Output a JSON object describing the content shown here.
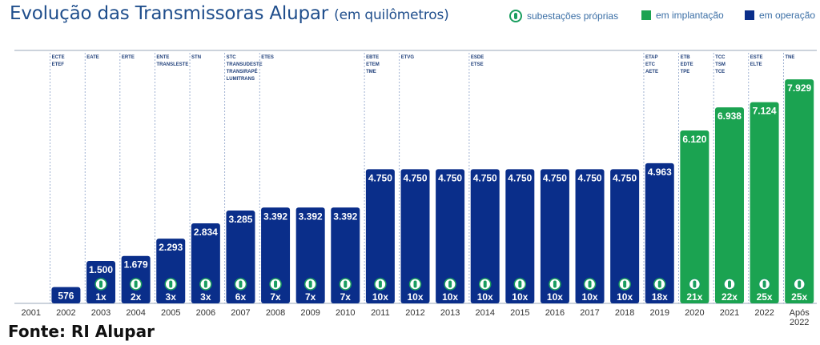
{
  "title": {
    "main": "Evolução das Transmissoras Alupar",
    "sub": "(em quilômetros)"
  },
  "legend": {
    "substations": "subestações próprias",
    "implantation": "em implantação",
    "operation": "em operação"
  },
  "source": "Fonte: RI Alupar",
  "colors": {
    "operation": "#0a2e8a",
    "implantation": "#1ba351",
    "title": "#1f4e8c",
    "axis": "#6b7280",
    "substation_icon": "#1a9e5f"
  },
  "chart_data": {
    "type": "bar",
    "categories": [
      "2001",
      "2002",
      "2003",
      "2004",
      "2005",
      "2006",
      "2007",
      "2008",
      "2009",
      "2010",
      "2011",
      "2012",
      "2013",
      "2014",
      "2015",
      "2016",
      "2017",
      "2018",
      "2019",
      "2020",
      "2021",
      "2022",
      "Após 2022"
    ],
    "values": [
      0,
      576,
      1500,
      1679,
      2293,
      2834,
      3285,
      3392,
      3392,
      3392,
      4750,
      4750,
      4750,
      4750,
      4750,
      4750,
      4750,
      4750,
      4963,
      6120,
      6938,
      7124,
      7929
    ],
    "value_labels": [
      "",
      "576",
      "1.500",
      "1.679",
      "2.293",
      "2.834",
      "3.285",
      "3.392",
      "3.392",
      "3.392",
      "4.750",
      "4.750",
      "4.750",
      "4.750",
      "4.750",
      "4.750",
      "4.750",
      "4.750",
      "4.963",
      "6.120",
      "6.938",
      "7.124",
      "7.929"
    ],
    "status": [
      "operation",
      "operation",
      "operation",
      "operation",
      "operation",
      "operation",
      "operation",
      "operation",
      "operation",
      "operation",
      "operation",
      "operation",
      "operation",
      "operation",
      "operation",
      "operation",
      "operation",
      "operation",
      "operation",
      "implantation",
      "implantation",
      "implantation",
      "implantation"
    ],
    "substations": [
      "",
      "",
      "1x",
      "2x",
      "3x",
      "3x",
      "6x",
      "7x",
      "7x",
      "7x",
      "10x",
      "10x",
      "10x",
      "10x",
      "10x",
      "10x",
      "10x",
      "10x",
      "18x",
      "21x",
      "22x",
      "25x",
      "25x"
    ],
    "annotations": [
      [],
      [
        "ECTE",
        "ETEF"
      ],
      [
        "EATE"
      ],
      [
        "ERTE"
      ],
      [
        "ENTE",
        "TRANSLESTE"
      ],
      [
        "STN"
      ],
      [
        "STC",
        "TRANSUDESTE",
        "TRANSIRAPÉ",
        "LUMITRANS"
      ],
      [
        "ETES"
      ],
      [],
      [],
      [
        "EBTE",
        "ETEM",
        "TME"
      ],
      [
        "ETVG"
      ],
      [],
      [
        "ESDE",
        "ETSE"
      ],
      [],
      [],
      [],
      [],
      [
        "ETAP",
        "ETC",
        "AETE"
      ],
      [
        "ETB",
        "EDTE",
        "TPE"
      ],
      [
        "TCC",
        "TSM",
        "TCE"
      ],
      [
        "ESTE",
        "ELTE"
      ],
      [
        "TNE"
      ]
    ],
    "ylim": [
      0,
      8500
    ],
    "grid": false,
    "legend_position": "top-right"
  }
}
